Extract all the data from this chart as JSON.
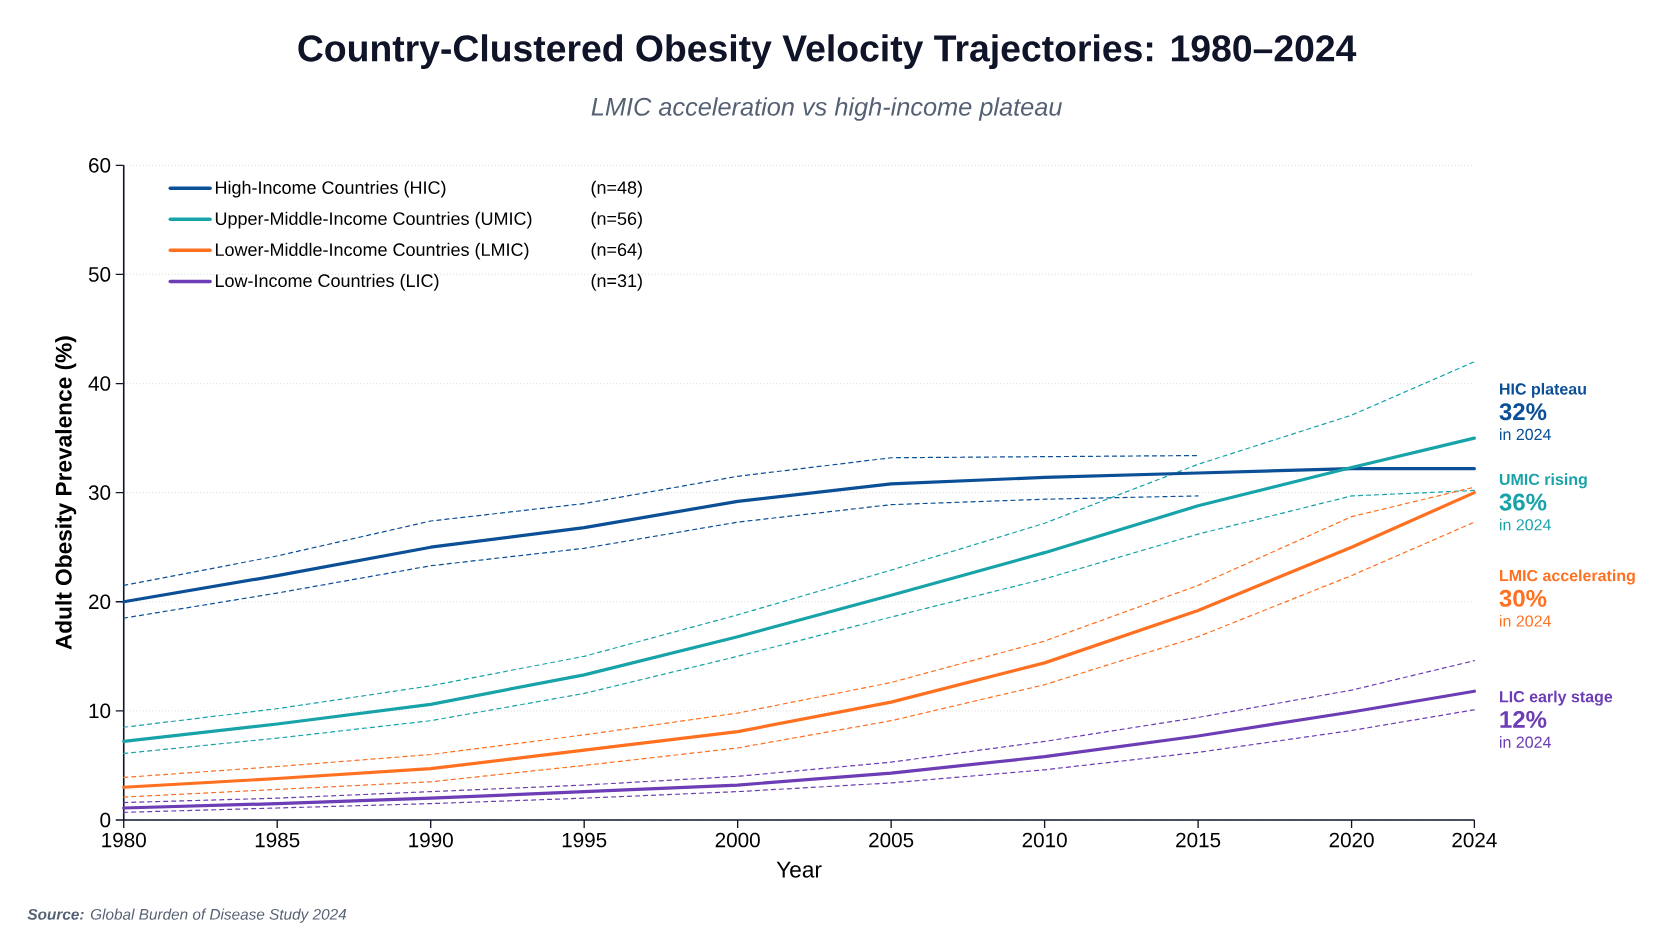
{
  "chart_data": {
    "type": "line",
    "title": "Country-Clustered Obesity Velocity Trajectories: 1980–2024",
    "subtitle": "LMIC acceleration vs high-income plateau",
    "xlabel": "Year",
    "ylabel": "Adult Obesity Prevalence (%)",
    "x": [
      1980,
      1985,
      1990,
      1995,
      2000,
      2005,
      2010,
      2015,
      2020,
      2024
    ],
    "series": [
      {
        "name": "High-Income Countries (HIC)",
        "color": "#0b4f96",
        "values": [
          20.0,
          22.4,
          25.0,
          26.8,
          29.2,
          30.8,
          31.4,
          31.8,
          32.2,
          32.2
        ]
      },
      {
        "name": "Upper-Middle-Income Countries (UMIC)",
        "color": "#17a3a8",
        "values": [
          7.2,
          8.8,
          10.6,
          13.3,
          16.8,
          20.6,
          24.5,
          28.8,
          32.3,
          35.0
        ]
      },
      {
        "name": "Lower-Middle-Income Countries (LMIC)",
        "color": "#ff7020",
        "values": [
          3.0,
          3.8,
          4.7,
          6.4,
          8.1,
          10.8,
          14.4,
          19.2,
          25.0,
          30.0
        ]
      },
      {
        "name": "Low-Income Countries (LIC)",
        "color": "#6d3db5",
        "values": [
          1.1,
          1.5,
          2.0,
          2.6,
          3.2,
          4.3,
          5.8,
          7.7,
          9.9,
          11.8
        ]
      },
      {
        "color": "#0b4f96",
        "line_style": "dashed",
        "values": [
          18.5,
          20.8,
          23.3,
          24.9,
          27.3,
          28.9,
          29.4,
          29.7,
          null,
          null
        ]
      },
      {
        "color": "#0b4f96",
        "line_style": "dashed",
        "values": [
          21.5,
          24.2,
          27.4,
          29.0,
          31.5,
          33.2,
          33.3,
          33.4,
          null,
          null
        ]
      },
      {
        "color": "#17a3a8",
        "line_style": "dashed",
        "values": [
          6.1,
          7.5,
          9.1,
          11.6,
          15.0,
          18.6,
          22.1,
          26.2,
          29.7,
          30.2
        ]
      },
      {
        "color": "#17a3a8",
        "line_style": "dashed",
        "values": [
          8.5,
          10.2,
          12.3,
          15.0,
          18.8,
          22.9,
          27.2,
          32.6,
          37.1,
          42.0
        ]
      },
      {
        "color": "#ff7020",
        "line_style": "dashed",
        "values": [
          2.1,
          2.8,
          3.5,
          5.0,
          6.6,
          9.1,
          12.4,
          16.8,
          22.4,
          27.3
        ]
      },
      {
        "color": "#ff7020",
        "line_style": "dashed",
        "values": [
          3.9,
          4.9,
          6.0,
          7.8,
          9.8,
          12.6,
          16.4,
          21.5,
          27.8,
          30.5
        ]
      },
      {
        "color": "#6d3db5",
        "line_style": "dashed",
        "values": [
          0.7,
          1.1,
          1.5,
          2.0,
          2.6,
          3.4,
          4.6,
          6.2,
          8.2,
          10.1
        ]
      },
      {
        "color": "#6d3db5",
        "line_style": "dashed",
        "values": [
          1.6,
          2.0,
          2.6,
          3.2,
          4.0,
          5.3,
          7.2,
          9.4,
          11.9,
          14.6
        ]
      }
    ],
    "xlim": [
      1980,
      2024
    ],
    "xticks": [
      1980,
      1985,
      1990,
      1995,
      2000,
      2005,
      2010,
      2015,
      2020,
      2024
    ],
    "ylim": [
      0,
      60
    ],
    "yticks": [
      0,
      10,
      20,
      30,
      40,
      50,
      60
    ],
    "grid": "y",
    "legend": "top left",
    "line_style": "solid",
    "marker": "none",
    "annotations": [
      "(n=48)",
      "(n=56)",
      "(n=64)",
      "(n=31)",
      "HIC plateau",
      "32%",
      "in 2024",
      "UMIC rising",
      "36%",
      "in 2024",
      "LMIC accelerating",
      "30%",
      "in 2024",
      "LIC early stage",
      "12%",
      "in 2024",
      "**Source:** Global Burden of Disease Study 2024"
    ]
  }
}
